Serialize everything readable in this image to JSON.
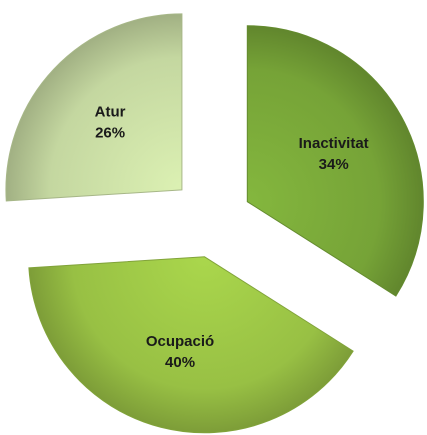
{
  "chart_data": {
    "type": "pie",
    "categories": [
      "Inactivitat",
      "Ocupació",
      "Atur"
    ],
    "values": [
      34,
      40,
      26
    ],
    "value_labels": [
      "34%",
      "40%",
      "26%"
    ],
    "colors": [
      "#76a337",
      "#98c044",
      "#c4d7a0"
    ]
  }
}
